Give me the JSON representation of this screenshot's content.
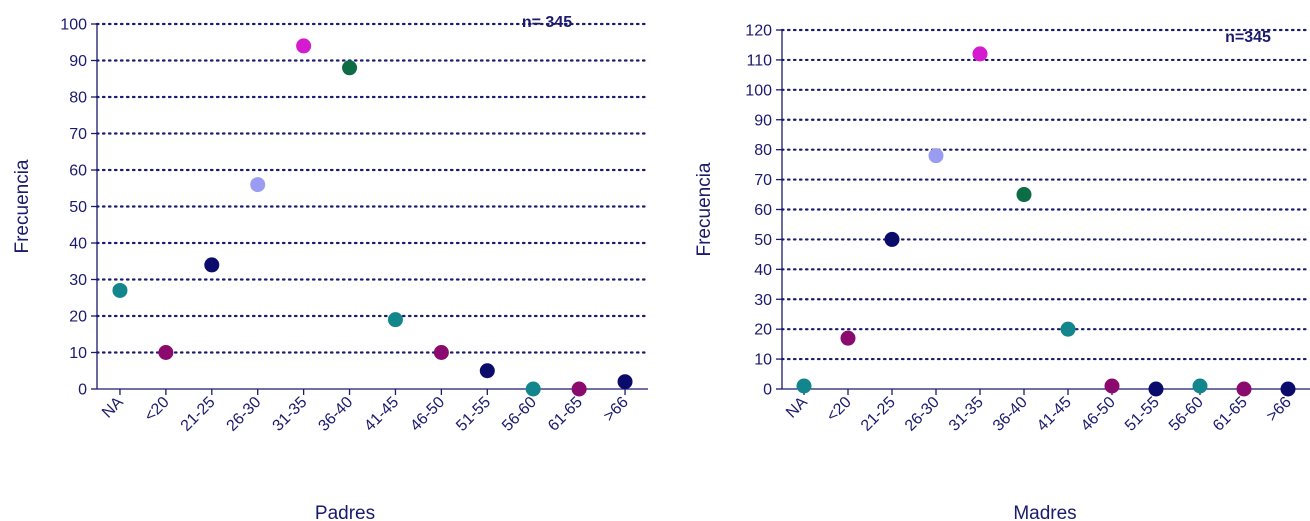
{
  "chart_data": [
    {
      "type": "scatter",
      "annotation": "n= 345",
      "xlabel": "Padres",
      "ylabel": "Frecuencia",
      "ylim": [
        0,
        100
      ],
      "yticks": [
        0,
        10,
        20,
        30,
        40,
        50,
        60,
        70,
        80,
        90,
        100
      ],
      "grid": "horizontal dotted",
      "categories": [
        "NA",
        "<20",
        "21-25",
        "26-30",
        "31-35",
        "36-40",
        "41-45",
        "46-50",
        "51-55",
        "56-60",
        "61-65",
        ">66"
      ],
      "values": [
        27,
        10,
        34,
        56,
        94,
        88,
        19,
        10,
        5,
        0,
        0,
        2
      ],
      "colors": [
        "#12868c",
        "#8b0a6e",
        "#0b0b6b",
        "#9a9cf2",
        "#d41bcf",
        "#0d6b45",
        "#12868c",
        "#8b0a6e",
        "#0b0b6b",
        "#12868c",
        "#8b0a6e",
        "#0b0b6b"
      ]
    },
    {
      "type": "scatter",
      "annotation": "n=345",
      "xlabel": "Madres",
      "ylabel": "Frecuencia",
      "ylim": [
        0,
        120
      ],
      "yticks": [
        0,
        10,
        20,
        30,
        40,
        50,
        60,
        70,
        80,
        90,
        100,
        110,
        120
      ],
      "grid": "horizontal dotted",
      "categories": [
        "NA",
        "<20",
        "21-25",
        "26-30",
        "31-35",
        "36-40",
        "41-45",
        "46-50",
        "51-55",
        "56-60",
        "61-65",
        ">66"
      ],
      "values": [
        1,
        17,
        50,
        78,
        112,
        65,
        20,
        1,
        0,
        1,
        0,
        0
      ],
      "colors": [
        "#12868c",
        "#8b0a6e",
        "#0b0b6b",
        "#9a9cf2",
        "#d41bcf",
        "#0d6b45",
        "#12868c",
        "#8b0a6e",
        "#0b0b6b",
        "#12868c",
        "#8b0a6e",
        "#0b0b6b"
      ]
    }
  ],
  "axis_color": "#1a1a6e"
}
